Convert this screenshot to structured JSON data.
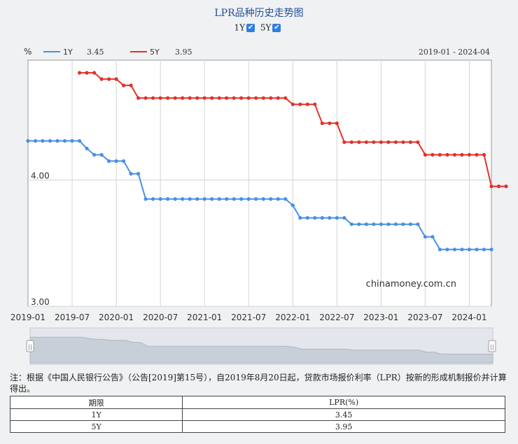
{
  "title": "LPR品种历史走势图",
  "toggles": [
    {
      "label": "1Y",
      "checked": true
    },
    {
      "label": "5Y",
      "checked": true
    }
  ],
  "unit": "%",
  "date_range": "2019-01 - 2024-04",
  "watermark": "chinamoney.com.cn",
  "note": "注：根据《中国人民银行公告》（公告[2019]第15号），自2019年8月20日起，贷款市场报价利率（LPR）按新的形成机制报价并计算得出。",
  "table": {
    "headers": [
      "期限",
      "LPR(%)"
    ],
    "rows": [
      [
        "1Y",
        "3.45"
      ],
      [
        "5Y",
        "3.95"
      ]
    ]
  },
  "colors": {
    "series_1y": "#4a8fe2",
    "series_5y": "#e2312a",
    "title": "#1f4e9a"
  },
  "chart_data": {
    "type": "line",
    "x_tick_labels": [
      "2019-01",
      "2019-07",
      "2020-01",
      "2020-07",
      "2021-01",
      "2021-07",
      "2022-01",
      "2022-07",
      "2023-01",
      "2023-07",
      "2024-01"
    ],
    "y_tick_labels": [
      "4.00",
      "3.00"
    ],
    "ylim": [
      3.0,
      4.95
    ],
    "grid": true,
    "legend": "top-left",
    "series": [
      {
        "name": "1Y",
        "latest": "3.45",
        "start": "2019-01",
        "values": [
          4.31,
          4.31,
          4.31,
          4.31,
          4.31,
          4.31,
          4.31,
          4.31,
          4.25,
          4.2,
          4.2,
          4.15,
          4.15,
          4.15,
          4.05,
          4.05,
          3.85,
          3.85,
          3.85,
          3.85,
          3.85,
          3.85,
          3.85,
          3.85,
          3.85,
          3.85,
          3.85,
          3.85,
          3.85,
          3.85,
          3.85,
          3.85,
          3.85,
          3.85,
          3.85,
          3.85,
          3.8,
          3.7,
          3.7,
          3.7,
          3.7,
          3.7,
          3.7,
          3.7,
          3.65,
          3.65,
          3.65,
          3.65,
          3.65,
          3.65,
          3.65,
          3.65,
          3.65,
          3.65,
          3.55,
          3.55,
          3.45,
          3.45,
          3.45,
          3.45,
          3.45,
          3.45,
          3.45,
          3.45
        ]
      },
      {
        "name": "5Y",
        "latest": "3.95",
        "start": "2019-08",
        "values": [
          4.85,
          4.85,
          4.85,
          4.8,
          4.8,
          4.8,
          4.75,
          4.75,
          4.65,
          4.65,
          4.65,
          4.65,
          4.65,
          4.65,
          4.65,
          4.65,
          4.65,
          4.65,
          4.65,
          4.65,
          4.65,
          4.65,
          4.65,
          4.65,
          4.65,
          4.65,
          4.65,
          4.65,
          4.65,
          4.6,
          4.6,
          4.6,
          4.6,
          4.45,
          4.45,
          4.45,
          4.3,
          4.3,
          4.3,
          4.3,
          4.3,
          4.3,
          4.3,
          4.3,
          4.3,
          4.3,
          4.3,
          4.2,
          4.2,
          4.2,
          4.2,
          4.2,
          4.2,
          4.2,
          4.2,
          4.2,
          3.95,
          3.95,
          3.95
        ]
      }
    ]
  }
}
